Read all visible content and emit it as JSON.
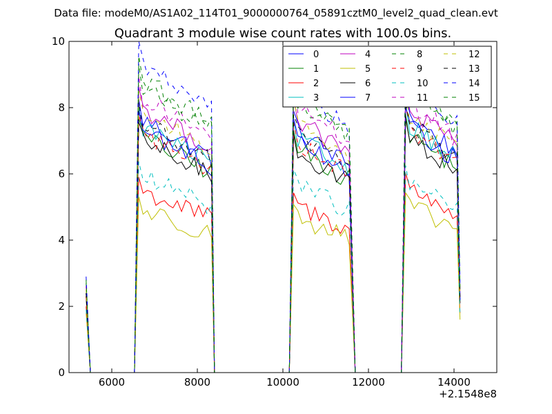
{
  "header": {
    "data_file_line": "Data file: modeM0/AS1A02_114T01_9000000764_05891cztM0_level2_quad_clean.evt"
  },
  "chart_data": {
    "type": "line",
    "title": "Quadrant 3 module wise count rates with 100.0s bins.",
    "xlabel": "",
    "ylabel": "",
    "xlim": [
      5000,
      15000
    ],
    "ylim": [
      0,
      10
    ],
    "x_offset_label": "+2.1548e8",
    "xticks": [
      6000,
      8000,
      10000,
      12000,
      14000
    ],
    "xtick_labels": [
      "6000",
      "8000",
      "10000",
      "12000",
      "14000"
    ],
    "yticks": [
      0,
      2,
      4,
      6,
      8,
      10
    ],
    "ytick_labels": [
      "0",
      "2",
      "4",
      "6",
      "8",
      "10"
    ],
    "grid": false,
    "legend_position": "top-right",
    "legend_columns": 4,
    "segments": [
      {
        "start": 6630,
        "end": 8330
      },
      {
        "start": 10250,
        "end": 11620
      },
      {
        "start": 12870,
        "end": 14130
      }
    ],
    "pre_point": {
      "x": 5400
    },
    "series": [
      {
        "name": "0",
        "color": "#0000ff",
        "dash": "solid",
        "levels": [
          7.0,
          6.7,
          7.1
        ],
        "edge": 2.3
      },
      {
        "name": "1",
        "color": "#008000",
        "dash": "solid",
        "levels": [
          6.5,
          6.2,
          6.6
        ],
        "edge": 2.1
      },
      {
        "name": "2",
        "color": "#ff0000",
        "dash": "solid",
        "levels": [
          5.0,
          4.6,
          5.1
        ],
        "edge": 1.8
      },
      {
        "name": "3",
        "color": "#00bfbf",
        "dash": "solid",
        "levels": [
          6.8,
          6.5,
          6.9
        ],
        "edge": 2.2
      },
      {
        "name": "4",
        "color": "#bf00bf",
        "dash": "solid",
        "levels": [
          7.3,
          7.0,
          7.3
        ],
        "edge": 2.4
      },
      {
        "name": "5",
        "color": "#bfbf00",
        "dash": "solid",
        "levels": [
          4.5,
          4.3,
          4.6
        ],
        "edge": 1.6
      },
      {
        "name": "6",
        "color": "#000000",
        "dash": "solid",
        "levels": [
          6.4,
          6.1,
          6.5
        ],
        "edge": 2.1
      },
      {
        "name": "7",
        "color": "#0000ff",
        "dash": "solid",
        "levels": [
          6.7,
          6.5,
          6.8
        ],
        "edge": 2.2
      },
      {
        "name": "8",
        "color": "#008000",
        "dash": "dashed",
        "levels": [
          7.9,
          7.6,
          7.9
        ],
        "edge": 2.5
      },
      {
        "name": "9",
        "color": "#ff0000",
        "dash": "dashed",
        "levels": [
          6.6,
          6.4,
          6.8
        ],
        "edge": 2.1
      },
      {
        "name": "10",
        "color": "#00bfbf",
        "dash": "dashed",
        "levels": [
          5.4,
          5.2,
          5.3
        ],
        "edge": 1.7
      },
      {
        "name": "11",
        "color": "#bf00bf",
        "dash": "dashed",
        "levels": [
          7.6,
          7.4,
          7.5
        ],
        "edge": 2.4
      },
      {
        "name": "12",
        "color": "#bfbf00",
        "dash": "dashed",
        "levels": [
          7.2,
          7.0,
          7.2
        ],
        "edge": 2.3
      },
      {
        "name": "13",
        "color": "#000000",
        "dash": "dashed",
        "levels": [
          6.9,
          6.6,
          6.9
        ],
        "edge": 2.2
      },
      {
        "name": "14",
        "color": "#0000ff",
        "dash": "dashed",
        "levels": [
          8.5,
          7.8,
          8.0
        ],
        "edge": 2.7
      },
      {
        "name": "15",
        "color": "#008000",
        "dash": "dashed",
        "levels": [
          8.1,
          7.7,
          7.8
        ],
        "edge": 2.6
      }
    ]
  }
}
